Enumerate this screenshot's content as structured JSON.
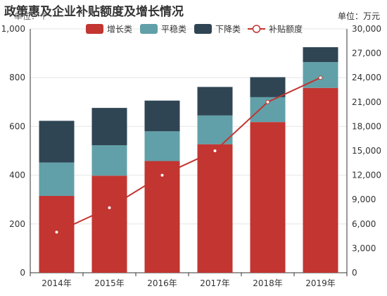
{
  "chart_data": {
    "type": "bar",
    "title": "政策惠及企业补贴额度及增长情况",
    "categories": [
      "2014年",
      "2015年",
      "2016年",
      "2017年",
      "2018年",
      "2019年"
    ],
    "series": [
      {
        "name": "增长类",
        "kind": "bar",
        "stack": true,
        "axis": "left",
        "color": "#c23531",
        "values": [
          315,
          398,
          458,
          527,
          618,
          758
        ]
      },
      {
        "name": "平稳类",
        "kind": "bar",
        "stack": true,
        "axis": "left",
        "color": "#61a0a8",
        "values": [
          137,
          125,
          122,
          118,
          102,
          106
        ]
      },
      {
        "name": "下降类",
        "kind": "bar",
        "stack": true,
        "axis": "left",
        "color": "#2f4554",
        "values": [
          171,
          153,
          126,
          117,
          82,
          61
        ]
      },
      {
        "name": "补贴额度",
        "kind": "line",
        "axis": "right",
        "color": "#c23531",
        "values": [
          5000,
          8000,
          12000,
          15000,
          21000,
          24000
        ]
      }
    ],
    "ylabel": "单位：个",
    "ylabel_right": "单位：万元",
    "ylim": [
      0,
      1000
    ],
    "yticks": [
      0,
      200,
      400,
      600,
      800,
      "1,000"
    ],
    "ylim_right": [
      0,
      30000
    ],
    "yticks_right": [
      "0",
      "3,000",
      "6,000",
      "9,000",
      "12,000",
      "15,000",
      "18,000",
      "21,000",
      "24,000",
      "27,000",
      "30,000"
    ],
    "grid": true,
    "legend": "top-center"
  }
}
